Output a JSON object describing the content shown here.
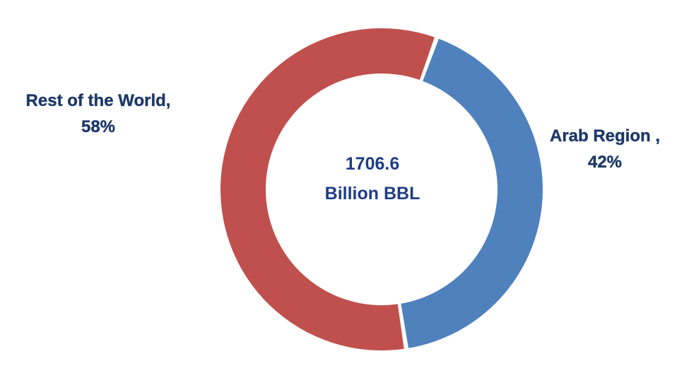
{
  "chart_data": {
    "type": "pie",
    "title": "",
    "center_label": [
      "1706.6",
      "Billion BBL"
    ],
    "categories": [
      "Arab Region",
      "Rest of the World"
    ],
    "values": [
      42,
      58
    ],
    "value_unit": "%",
    "data_labels": [
      [
        "Arab Region ,",
        "42%"
      ],
      [
        "Rest of the World,",
        "58%"
      ]
    ],
    "colors": [
      "#4f81bd",
      "#c0504d"
    ],
    "donut": true,
    "legend": "none"
  }
}
